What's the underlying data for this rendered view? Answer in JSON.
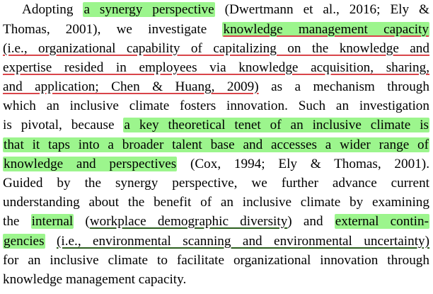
{
  "paragraph": {
    "lines": [
      {
        "segments": [
          {
            "text": "Adopting ",
            "style": "plain"
          },
          {
            "text": "a synergy perspective",
            "style": "highlight"
          },
          {
            "text": " (Dwertmann et al., 2016; Ely &",
            "style": "plain"
          }
        ]
      },
      {
        "segments": [
          {
            "text": "Thomas, 2001), we investigate ",
            "style": "plain"
          },
          {
            "text": "knowledge management capacity",
            "style": "highlight-underline"
          }
        ]
      },
      {
        "segments": [
          {
            "text": "(i.e., organizational capability of capitalizing on the knowledge and",
            "style": "underline"
          }
        ]
      },
      {
        "segments": [
          {
            "text": "expertise resided in employees via knowledge acquisition, sharing,",
            "style": "underline"
          }
        ]
      },
      {
        "segments": [
          {
            "text": "and application; Chen & Huang, 2009)",
            "style": "underline"
          },
          {
            "text": " as a mechanism through",
            "style": "plain"
          }
        ]
      },
      {
        "segments": [
          {
            "text": "which an inclusive climate fosters innovation. Such an investigation",
            "style": "plain"
          }
        ]
      },
      {
        "segments": [
          {
            "text": "is pivotal, because ",
            "style": "plain"
          },
          {
            "text": "a key theoretical tenet of an inclusive climate is",
            "style": "highlight"
          }
        ]
      },
      {
        "segments": [
          {
            "text": "that it taps into a broader talent base and accesses a wider range of",
            "style": "highlight"
          }
        ]
      },
      {
        "segments": [
          {
            "text": "knowledge and perspectives",
            "style": "highlight"
          },
          {
            "text": " (Cox, 1994; Ely & Thomas, 2001).",
            "style": "plain"
          }
        ]
      },
      {
        "segments": [
          {
            "text": "Guided by the synergy perspective, we further advance current",
            "style": "plain"
          }
        ]
      },
      {
        "segments": [
          {
            "text": "understanding about the benefit of an inclusive climate by examining",
            "style": "plain"
          }
        ]
      },
      {
        "segments": [
          {
            "text": "the ",
            "style": "plain"
          },
          {
            "text": "internal",
            "style": "highlight"
          },
          {
            "text": " (",
            "style": "plain"
          },
          {
            "text": "workplace demographic diversity",
            "style": "underline-green"
          },
          {
            "text": ") and ",
            "style": "plain"
          },
          {
            "text": "external contin-",
            "style": "highlight"
          }
        ]
      },
      {
        "segments": [
          {
            "text": "gencies",
            "style": "highlight"
          },
          {
            "text": " ",
            "style": "plain"
          },
          {
            "text": "(i.e., environmental scanning and environmental uncertainty)",
            "style": "underline-green"
          }
        ]
      },
      {
        "segments": [
          {
            "text": "for an inclusive climate to facilitate organizational innovation through",
            "style": "plain"
          }
        ]
      },
      {
        "segments": [
          {
            "text": "knowledge management capacity.",
            "style": "plain"
          }
        ]
      }
    ]
  }
}
